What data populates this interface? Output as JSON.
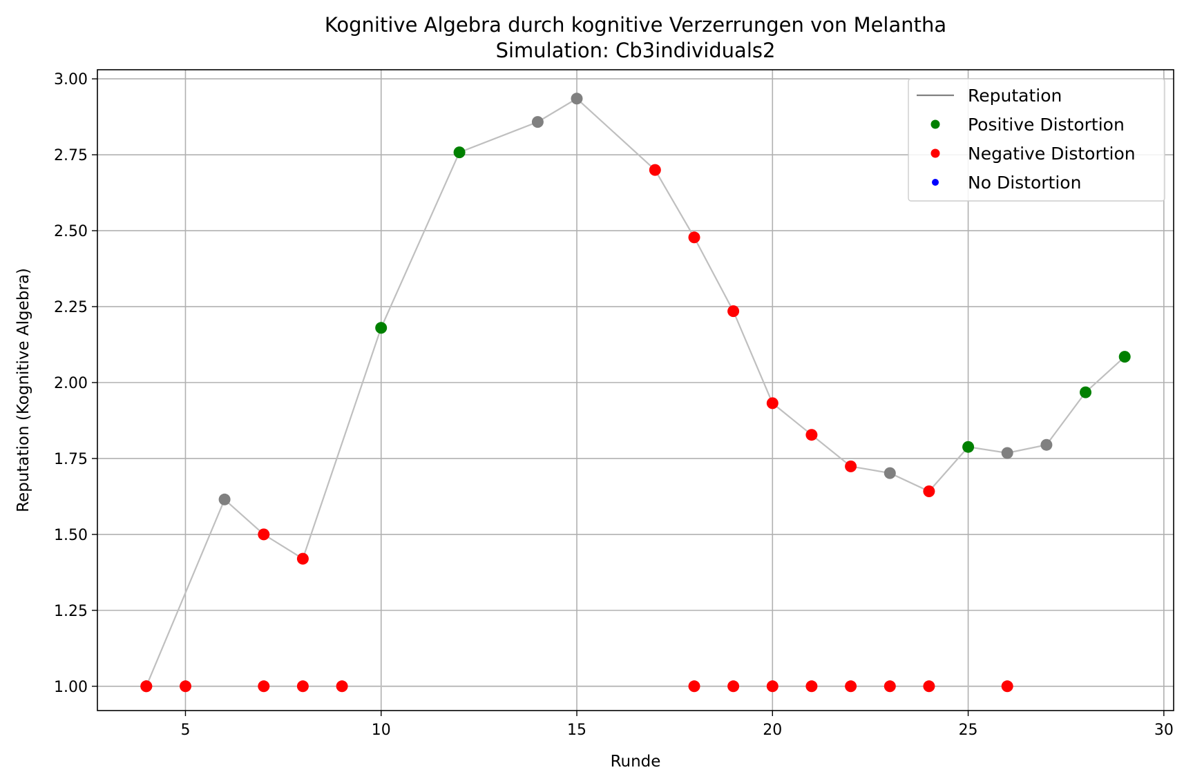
{
  "chart_data": {
    "type": "line",
    "title": "Kognitive Algebra durch kognitive Verzerrungen von Melantha",
    "subtitle": "Simulation: Cb3individuals2",
    "xlabel": "Runde",
    "ylabel": "Reputation (Kognitive Algebra)",
    "xlim": [
      2.75,
      30.25
    ],
    "ylim": [
      0.92,
      3.03
    ],
    "xticks": [
      5,
      10,
      15,
      20,
      25,
      30
    ],
    "yticks": [
      1.0,
      1.25,
      1.5,
      1.75,
      2.0,
      2.25,
      2.5,
      2.75,
      3.0
    ],
    "xtick_labels": [
      "5",
      "10",
      "15",
      "20",
      "25",
      "30"
    ],
    "ytick_labels": [
      "1.00",
      "1.25",
      "1.50",
      "1.75",
      "2.00",
      "2.25",
      "2.50",
      "2.75",
      "3.00"
    ],
    "grid": true,
    "legend_position": "top-right",
    "colors": {
      "line": "#bfbfbf",
      "legend_line": "#808080",
      "positive": "#008000",
      "negative": "#ff0000",
      "none": "#0000ff",
      "neutral": "#808080"
    },
    "legend": [
      {
        "label": "Reputation",
        "kind": "line",
        "color_key": "legend_line"
      },
      {
        "label": "Positive Distortion",
        "kind": "marker",
        "color_key": "positive"
      },
      {
        "label": "Negative Distortion",
        "kind": "marker",
        "color_key": "negative"
      },
      {
        "label": "No Distortion",
        "kind": "marker-small",
        "color_key": "none"
      }
    ],
    "series": [
      {
        "x": [
          4,
          5,
          7,
          8,
          9,
          18,
          19,
          20,
          21,
          22,
          23,
          24,
          26
        ],
        "y": [
          1.0,
          1.0,
          1.0,
          1.0,
          1.0,
          1.0,
          1.0,
          1.0,
          1.0,
          1.0,
          1.0,
          1.0,
          1.0
        ],
        "point_types": [
          "negative",
          "negative",
          "negative",
          "negative",
          "negative",
          "negative",
          "negative",
          "negative",
          "negative",
          "negative",
          "negative",
          "negative",
          "negative"
        ]
      },
      {
        "name": "Reputation",
        "x": [
          4,
          6,
          7,
          8,
          10,
          12,
          14,
          15,
          17,
          18,
          19,
          20,
          21,
          22,
          23,
          24,
          25,
          26,
          27,
          28,
          29
        ],
        "y": [
          1.0,
          1.615,
          1.5,
          1.42,
          2.18,
          2.758,
          2.858,
          2.935,
          2.7,
          2.478,
          2.235,
          1.932,
          1.828,
          1.724,
          1.702,
          1.642,
          1.788,
          1.768,
          1.795,
          1.968,
          2.085
        ],
        "point_types": [
          "negative",
          "neutral",
          "negative",
          "negative",
          "positive",
          "positive",
          "neutral",
          "neutral",
          "negative",
          "negative",
          "negative",
          "negative",
          "negative",
          "negative",
          "neutral",
          "negative",
          "positive",
          "neutral",
          "neutral",
          "positive",
          "positive"
        ]
      }
    ]
  }
}
